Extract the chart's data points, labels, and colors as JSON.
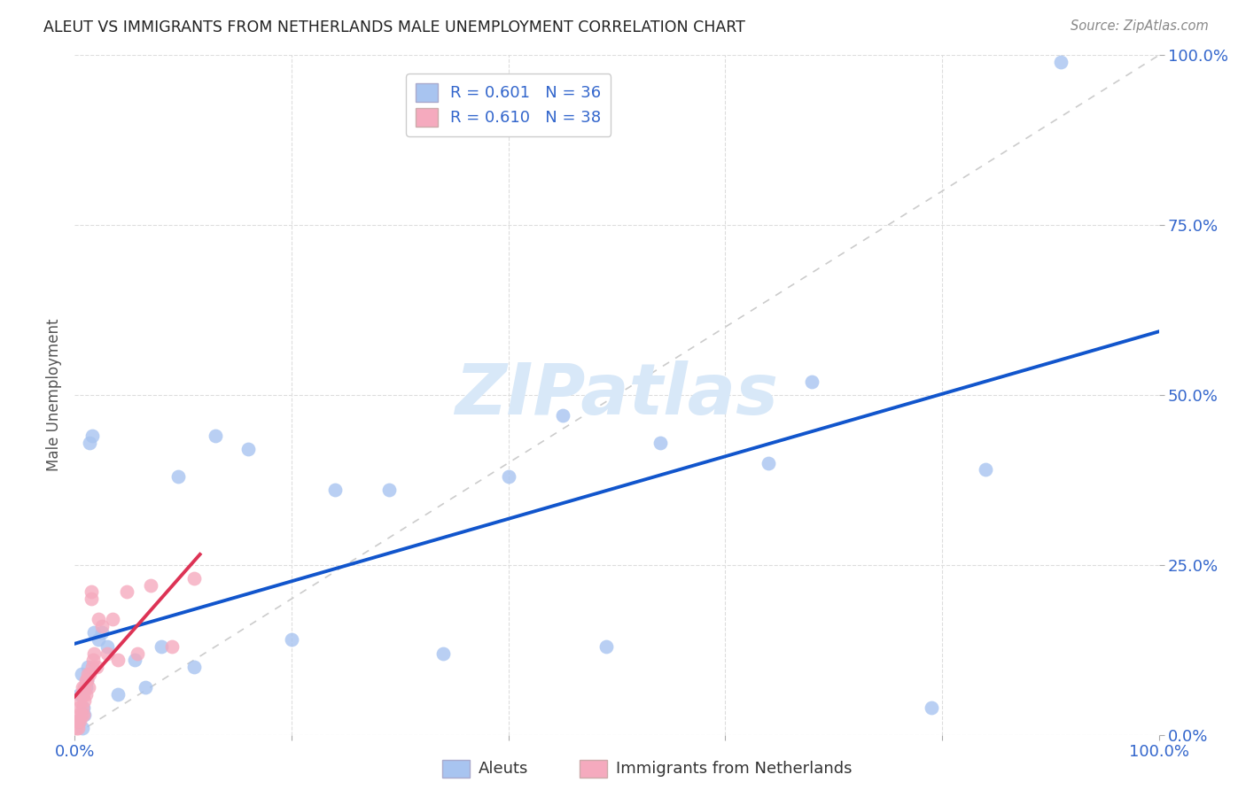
{
  "title": "ALEUT VS IMMIGRANTS FROM NETHERLANDS MALE UNEMPLOYMENT CORRELATION CHART",
  "source": "Source: ZipAtlas.com",
  "ylabel": "Male Unemployment",
  "ytick_labels": [
    "0.0%",
    "25.0%",
    "50.0%",
    "75.0%",
    "100.0%"
  ],
  "ytick_values": [
    0.0,
    0.25,
    0.5,
    0.75,
    1.0
  ],
  "legend_1_r": "R = 0.601",
  "legend_1_n": "N = 36",
  "legend_2_r": "R = 0.610",
  "legend_2_n": "N = 38",
  "aleut_color": "#a8c4f0",
  "netherlands_color": "#f5aabe",
  "regression_aleut_color": "#1155cc",
  "regression_netherlands_color": "#dd3355",
  "diagonal_color": "#cccccc",
  "watermark_color": "#d8e8f8",
  "aleut_scatter_x": [
    0.004,
    0.005,
    0.006,
    0.007,
    0.008,
    0.009,
    0.01,
    0.011,
    0.012,
    0.014,
    0.016,
    0.018,
    0.022,
    0.025,
    0.03,
    0.04,
    0.055,
    0.065,
    0.08,
    0.095,
    0.11,
    0.13,
    0.16,
    0.2,
    0.24,
    0.29,
    0.34,
    0.4,
    0.45,
    0.49,
    0.54,
    0.64,
    0.68,
    0.79,
    0.84,
    0.91
  ],
  "aleut_scatter_y": [
    0.02,
    0.06,
    0.09,
    0.01,
    0.04,
    0.03,
    0.07,
    0.08,
    0.1,
    0.43,
    0.44,
    0.15,
    0.14,
    0.15,
    0.13,
    0.06,
    0.11,
    0.07,
    0.13,
    0.38,
    0.1,
    0.44,
    0.42,
    0.14,
    0.36,
    0.36,
    0.12,
    0.38,
    0.47,
    0.13,
    0.43,
    0.4,
    0.52,
    0.04,
    0.39,
    0.99
  ],
  "netherlands_scatter_x": [
    0.001,
    0.002,
    0.003,
    0.003,
    0.004,
    0.004,
    0.005,
    0.005,
    0.006,
    0.006,
    0.007,
    0.007,
    0.008,
    0.008,
    0.009,
    0.009,
    0.01,
    0.01,
    0.011,
    0.012,
    0.013,
    0.014,
    0.015,
    0.015,
    0.016,
    0.017,
    0.018,
    0.02,
    0.022,
    0.025,
    0.03,
    0.035,
    0.04,
    0.048,
    0.058,
    0.07,
    0.09,
    0.11
  ],
  "netherlands_scatter_y": [
    0.01,
    0.02,
    0.01,
    0.02,
    0.03,
    0.04,
    0.02,
    0.05,
    0.03,
    0.06,
    0.04,
    0.07,
    0.03,
    0.06,
    0.05,
    0.07,
    0.06,
    0.08,
    0.08,
    0.09,
    0.07,
    0.09,
    0.2,
    0.21,
    0.1,
    0.11,
    0.12,
    0.1,
    0.17,
    0.16,
    0.12,
    0.17,
    0.11,
    0.21,
    0.12,
    0.22,
    0.13,
    0.23
  ]
}
